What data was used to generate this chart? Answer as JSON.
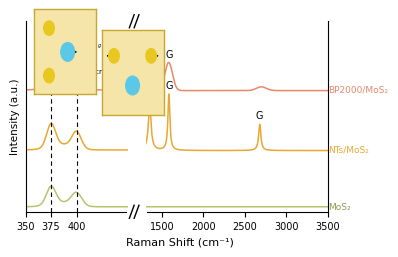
{
  "ylabel": "Intensity (a.u.)",
  "xlabel": "Raman Shift (cm⁻¹)",
  "colors": {
    "BP2000": "#e8896a",
    "NTs": "#e8a832",
    "MoS2": "#b5c46e"
  },
  "labels": {
    "BP2000": "BP2000/MoS₂",
    "NTs": "NTs/MoS₂",
    "MoS2": "MoS₂"
  },
  "offsets": {
    "BP2000": 1.85,
    "NTs": 0.9,
    "MoS2": 0.0
  },
  "background_color": "#ffffff",
  "inset_color": "#f5e5a8",
  "inset_border": "#c8a830",
  "mo_color": "#5bc8e8",
  "s_color": "#e8c820"
}
